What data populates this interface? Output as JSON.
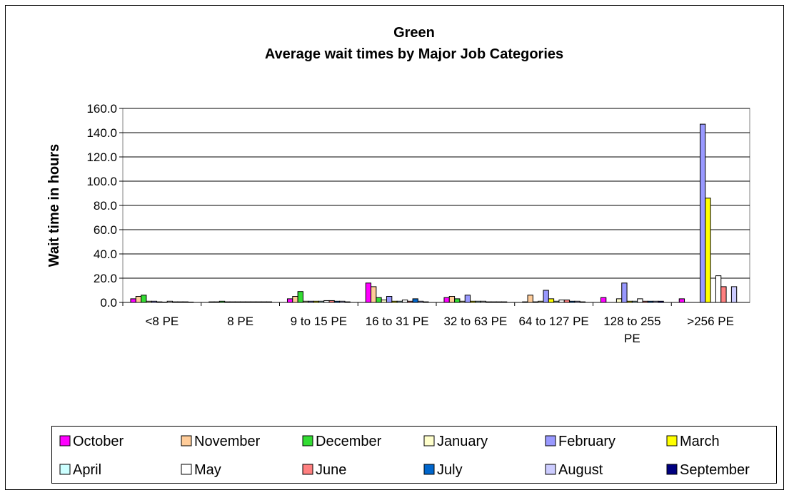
{
  "chart_data": {
    "type": "bar",
    "title": "Green",
    "subtitle": "Average wait times by Major Job Categories",
    "y_label": "Wait time in hours",
    "categories": [
      "<8 PE",
      "8 PE",
      "9 to 15 PE",
      "16 to 31 PE",
      "32 to 63 PE",
      "64 to 127 PE",
      "128 to 255 PE",
      ">256 PE"
    ],
    "ylim": [
      0,
      160
    ],
    "yticks": [
      {
        "value": 0,
        "label": "0.0"
      },
      {
        "value": 20,
        "label": "20.0"
      },
      {
        "value": 40,
        "label": "40.0"
      },
      {
        "value": 60,
        "label": "60.0"
      },
      {
        "value": 80,
        "label": "80.0"
      },
      {
        "value": 100,
        "label": "100.0"
      },
      {
        "value": 120,
        "label": "120.0"
      },
      {
        "value": 140,
        "label": "140.0"
      },
      {
        "value": 160,
        "label": "160.0"
      }
    ],
    "grid": true,
    "legend": "bottom",
    "series": [
      {
        "name": "October",
        "color": "#ff00ff",
        "values": [
          3,
          0.5,
          3,
          16,
          4,
          0.5,
          4,
          3
        ]
      },
      {
        "name": "November",
        "color": "#ffcc99",
        "values": [
          5,
          0.5,
          5,
          13,
          5,
          6,
          0,
          0
        ]
      },
      {
        "name": "December",
        "color": "#33dd33",
        "values": [
          6,
          1,
          9,
          4,
          3,
          0.5,
          0,
          0
        ]
      },
      {
        "name": "January",
        "color": "#ffffcc",
        "values": [
          1,
          0.5,
          1,
          2,
          1,
          1,
          3,
          0
        ]
      },
      {
        "name": "February",
        "color": "#9999ff",
        "values": [
          1,
          0.5,
          1,
          5,
          6,
          10,
          16,
          147
        ]
      },
      {
        "name": "March",
        "color": "#ffff00",
        "values": [
          0.5,
          0.5,
          1,
          1,
          1,
          3,
          1,
          86
        ]
      },
      {
        "name": "April",
        "color": "#ccffff",
        "values": [
          0.3,
          0.5,
          1,
          1,
          1,
          1,
          1,
          0
        ]
      },
      {
        "name": "May",
        "color": "#ffffff",
        "values": [
          1,
          0.5,
          1.5,
          2,
          1,
          2,
          3,
          22
        ]
      },
      {
        "name": "June",
        "color": "#ff8080",
        "values": [
          0.5,
          0.5,
          1.5,
          1,
          0.5,
          2,
          1,
          13
        ]
      },
      {
        "name": "July",
        "color": "#0066cc",
        "values": [
          0.5,
          0.5,
          1,
          3,
          0.5,
          1,
          1,
          0
        ]
      },
      {
        "name": "August",
        "color": "#ccccff",
        "values": [
          0.5,
          0.5,
          1,
          1,
          0.5,
          1,
          1,
          13
        ]
      },
      {
        "name": "September",
        "color": "#000080",
        "values": [
          0.3,
          0.5,
          0.5,
          0.5,
          0.5,
          0.5,
          1,
          0
        ]
      }
    ]
  }
}
